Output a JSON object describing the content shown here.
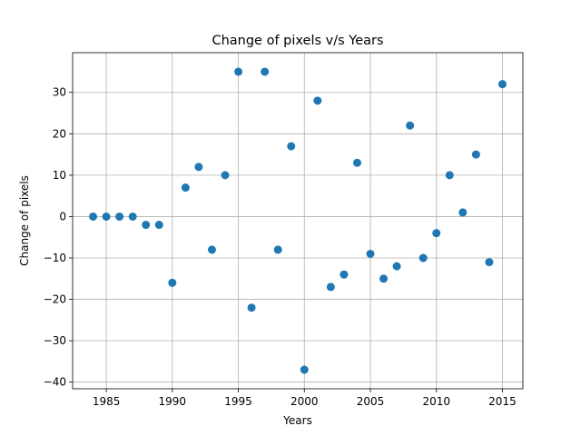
{
  "chart_data": {
    "type": "scatter",
    "title": "Change of pixels v/s Years",
    "xlabel": "Years",
    "ylabel": "Change of pixels",
    "xlim": [
      1982.45,
      2016.55
    ],
    "ylim": [
      -41.6,
      39.6
    ],
    "xticks": [
      1985,
      1990,
      1995,
      2000,
      2005,
      2010,
      2015
    ],
    "yticks": [
      -40,
      -30,
      -20,
      -10,
      0,
      10,
      20,
      30
    ],
    "grid": true,
    "marker_color": "#1f77b4",
    "x": [
      1984,
      1985,
      1986,
      1987,
      1988,
      1989,
      1990,
      1991,
      1992,
      1993,
      1994,
      1995,
      1996,
      1997,
      1998,
      1999,
      2000,
      2001,
      2002,
      2003,
      2004,
      2005,
      2006,
      2007,
      2008,
      2009,
      2010,
      2011,
      2012,
      2013,
      2014,
      2015
    ],
    "y": [
      0,
      0,
      0,
      0,
      -2,
      -2,
      -16,
      7,
      12,
      -8,
      10,
      35,
      -22,
      35,
      -8,
      17,
      -37,
      28,
      -17,
      -14,
      13,
      -9,
      -15,
      -12,
      22,
      -10,
      -4,
      10,
      1,
      15,
      -11,
      32
    ]
  }
}
